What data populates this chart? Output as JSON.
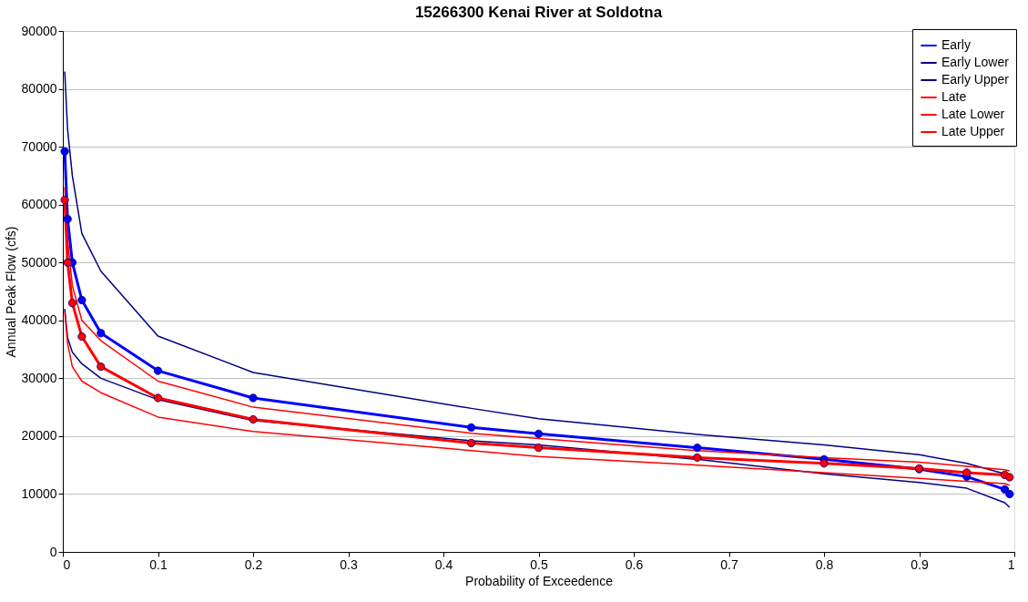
{
  "chart_data": {
    "type": "line",
    "title": "15266300 Kenai River at Soldotna",
    "xlabel": "Probability of Exceedence",
    "ylabel": "Annual Peak Flow (cfs)",
    "x": [
      0.002,
      0.005,
      0.01,
      0.02,
      0.04,
      0.1,
      0.2,
      0.4292,
      0.5,
      0.6667,
      0.8,
      0.9,
      0.95,
      0.99,
      0.995
    ],
    "series": [
      {
        "name": "Early",
        "color": "#0000ff",
        "marker": "circle",
        "values": [
          69200,
          57500,
          50000,
          43500,
          37800,
          31300,
          26600,
          21500,
          20400,
          18000,
          16000,
          14300,
          13000,
          10800,
          10000
        ]
      },
      {
        "name": "Early Lower",
        "color": "#000080",
        "marker": "none",
        "values": [
          42000,
          37000,
          34500,
          32500,
          30000,
          26300,
          22700,
          19200,
          18500,
          16000,
          13500,
          12000,
          11000,
          8500,
          7700
        ]
      },
      {
        "name": "Early Upper",
        "color": "#000080",
        "marker": "none",
        "values": [
          83000,
          73000,
          65000,
          55000,
          48500,
          37300,
          31000,
          24800,
          23000,
          20300,
          18500,
          16800,
          15300,
          13500,
          13000
        ]
      },
      {
        "name": "Late",
        "color": "#ff0000",
        "marker": "circle",
        "values": [
          60800,
          50000,
          43000,
          37200,
          32000,
          26600,
          22900,
          18800,
          18000,
          16300,
          15300,
          14400,
          13700,
          13300,
          12900
        ]
      },
      {
        "name": "Late Lower",
        "color": "#ff0000",
        "marker": "none",
        "values": [
          41500,
          36000,
          32000,
          29500,
          27500,
          23300,
          20800,
          17500,
          16500,
          15000,
          13700,
          12700,
          12200,
          11800,
          11500
        ]
      },
      {
        "name": "Late Upper",
        "color": "#ff0000",
        "marker": "none",
        "values": [
          63000,
          54000,
          46000,
          40000,
          36500,
          29500,
          25000,
          20500,
          19600,
          17500,
          16300,
          15500,
          14800,
          14200,
          14000
        ]
      }
    ],
    "xlim": [
      0,
      1
    ],
    "xticks": [
      0,
      0.1,
      0.2,
      0.3,
      0.4,
      0.5,
      0.6,
      0.7,
      0.8,
      0.9,
      1
    ],
    "ylim": [
      0,
      90000
    ],
    "yticks": [
      0,
      10000,
      20000,
      30000,
      40000,
      50000,
      60000,
      70000,
      80000,
      90000
    ],
    "grid": "y",
    "legend": "top right",
    "line_style": "solid"
  }
}
